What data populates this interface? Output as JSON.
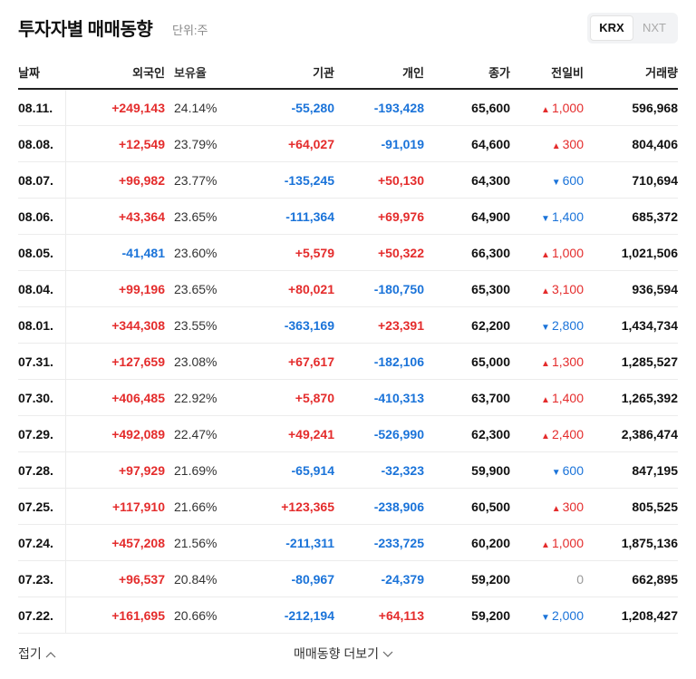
{
  "header": {
    "title": "투자자별 매매동향",
    "unit": "단위:주",
    "tabs": [
      "KRX",
      "NXT"
    ],
    "active_tab": 0
  },
  "table": {
    "columns": [
      "날짜",
      "외국인",
      "보유율",
      "기관",
      "개인",
      "종가",
      "전일비",
      "거래량"
    ],
    "rows": [
      [
        "08.11.",
        "+249,143",
        "24.14%",
        "-55,280",
        "-193,428",
        "65,600",
        {
          "dir": "up",
          "text": "1,000"
        },
        "596,968"
      ],
      [
        "08.08.",
        "+12,549",
        "23.79%",
        "+64,027",
        "-91,019",
        "64,600",
        {
          "dir": "up",
          "text": "300"
        },
        "804,406"
      ],
      [
        "08.07.",
        "+96,982",
        "23.77%",
        "-135,245",
        "+50,130",
        "64,300",
        {
          "dir": "down",
          "text": "600"
        },
        "710,694"
      ],
      [
        "08.06.",
        "+43,364",
        "23.65%",
        "-111,364",
        "+69,976",
        "64,900",
        {
          "dir": "down",
          "text": "1,400"
        },
        "685,372"
      ],
      [
        "08.05.",
        "-41,481",
        "23.60%",
        "+5,579",
        "+50,322",
        "66,300",
        {
          "dir": "up",
          "text": "1,000"
        },
        "1,021,506"
      ],
      [
        "08.04.",
        "+99,196",
        "23.65%",
        "+80,021",
        "-180,750",
        "65,300",
        {
          "dir": "up",
          "text": "3,100"
        },
        "936,594"
      ],
      [
        "08.01.",
        "+344,308",
        "23.55%",
        "-363,169",
        "+23,391",
        "62,200",
        {
          "dir": "down",
          "text": "2,800"
        },
        "1,434,734"
      ],
      [
        "07.31.",
        "+127,659",
        "23.08%",
        "+67,617",
        "-182,106",
        "65,000",
        {
          "dir": "up",
          "text": "1,300"
        },
        "1,285,527"
      ],
      [
        "07.30.",
        "+406,485",
        "22.92%",
        "+5,870",
        "-410,313",
        "63,700",
        {
          "dir": "up",
          "text": "1,400"
        },
        "1,265,392"
      ],
      [
        "07.29.",
        "+492,089",
        "22.47%",
        "+49,241",
        "-526,990",
        "62,300",
        {
          "dir": "up",
          "text": "2,400"
        },
        "2,386,474"
      ],
      [
        "07.28.",
        "+97,929",
        "21.69%",
        "-65,914",
        "-32,323",
        "59,900",
        {
          "dir": "down",
          "text": "600"
        },
        "847,195"
      ],
      [
        "07.25.",
        "+117,910",
        "21.66%",
        "+123,365",
        "-238,906",
        "60,500",
        {
          "dir": "up",
          "text": "300"
        },
        "805,525"
      ],
      [
        "07.24.",
        "+457,208",
        "21.56%",
        "-211,311",
        "-233,725",
        "60,200",
        {
          "dir": "up",
          "text": "1,000"
        },
        "1,875,136"
      ],
      [
        "07.23.",
        "+96,537",
        "20.84%",
        "-80,967",
        "-24,379",
        "59,200",
        {
          "dir": "flat",
          "text": "0"
        },
        "662,895"
      ],
      [
        "07.22.",
        "+161,695",
        "20.66%",
        "-212,194",
        "+64,113",
        "59,200",
        {
          "dir": "down",
          "text": "2,000"
        },
        "1,208,427"
      ]
    ]
  },
  "footer": {
    "collapse": "접기",
    "more": "매매동향 더보기"
  }
}
